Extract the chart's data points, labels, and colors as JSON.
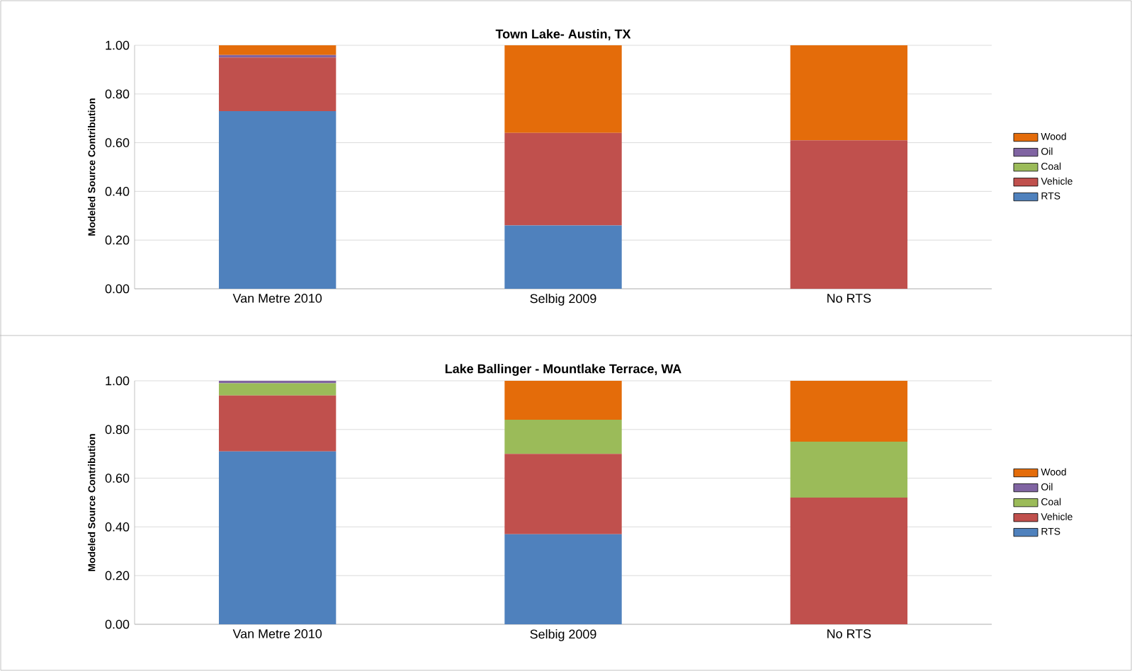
{
  "chart_data": [
    {
      "type": "bar",
      "stacked": true,
      "title": "Town Lake- Austin, TX",
      "ylabel": "Modeled Source Contribution",
      "categories": [
        "Van Metre 2010",
        "Selbig 2009",
        "No RTS"
      ],
      "series": [
        {
          "name": "RTS",
          "color": "#4f81bd",
          "values": [
            0.73,
            0.26,
            0
          ]
        },
        {
          "name": "Vehicle",
          "color": "#c0504d",
          "values": [
            0.22,
            0.38,
            0.61
          ]
        },
        {
          "name": "Coal",
          "color": "#9bbb59",
          "values": [
            0,
            0,
            0
          ]
        },
        {
          "name": "Oil",
          "color": "#8064a2",
          "values": [
            0.01,
            0,
            0
          ]
        },
        {
          "name": "Wood",
          "color": "#e46c0a",
          "values": [
            0.04,
            0.36,
            0.39
          ]
        }
      ],
      "ylim": [
        0,
        1
      ],
      "yticks": [
        {
          "value": 0,
          "label": "0.00"
        },
        {
          "value": 0.2,
          "label": "0.20"
        },
        {
          "value": 0.4,
          "label": "0.40"
        },
        {
          "value": 0.6,
          "label": "0.60"
        },
        {
          "value": 0.8,
          "label": "0.80"
        },
        {
          "value": 1,
          "label": "1.00"
        }
      ],
      "grid": "y",
      "legend": "right"
    },
    {
      "type": "bar",
      "stacked": true,
      "title": "Lake Ballinger - Mountlake Terrace, WA",
      "ylabel": "Modeled Source Contribution",
      "categories": [
        "Van Metre 2010",
        "Selbig 2009",
        "No RTS"
      ],
      "series": [
        {
          "name": "RTS",
          "color": "#4f81bd",
          "values": [
            0.71,
            0.37,
            0
          ]
        },
        {
          "name": "Vehicle",
          "color": "#c0504d",
          "values": [
            0.23,
            0.33,
            0.52
          ]
        },
        {
          "name": "Coal",
          "color": "#9bbb59",
          "values": [
            0.05,
            0.14,
            0.23
          ]
        },
        {
          "name": "Oil",
          "color": "#8064a2",
          "values": [
            0.01,
            0,
            0
          ]
        },
        {
          "name": "Wood",
          "color": "#e46c0a",
          "values": [
            0,
            0.16,
            0.25
          ]
        }
      ],
      "ylim": [
        0,
        1
      ],
      "yticks": [
        {
          "value": 0,
          "label": "0.00"
        },
        {
          "value": 0.2,
          "label": "0.20"
        },
        {
          "value": 0.4,
          "label": "0.40"
        },
        {
          "value": 0.6,
          "label": "0.60"
        },
        {
          "value": 0.8,
          "label": "0.80"
        },
        {
          "value": 1,
          "label": "1.00"
        }
      ],
      "grid": "y",
      "legend": "right"
    }
  ]
}
